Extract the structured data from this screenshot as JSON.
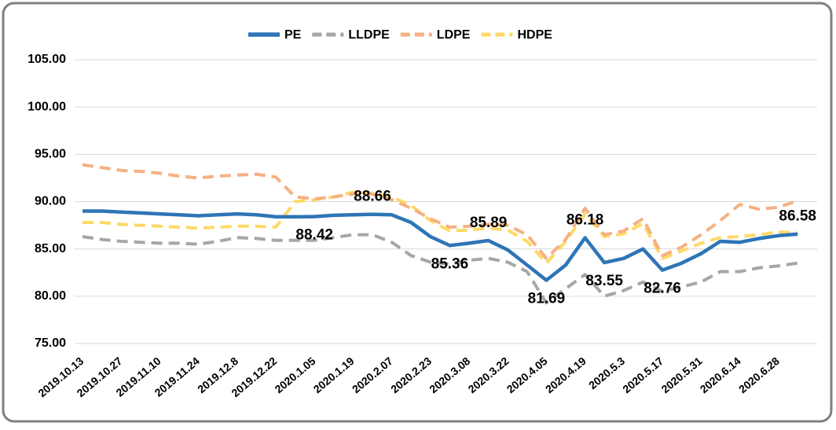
{
  "chart_data": {
    "type": "line",
    "categories": [
      "2019.10.13",
      null,
      "2019.10.27",
      null,
      "2019.11.10",
      null,
      "2019.11.24",
      null,
      "2019.12.8",
      null,
      "2019.12.22",
      null,
      "2020.1.05",
      null,
      "2020.1.19",
      null,
      "2020.2.07",
      null,
      "2020.2.23",
      null,
      "2020.3.08",
      null,
      "2020.3.22",
      null,
      "2020.4.05",
      null,
      "2020.4.19",
      null,
      "2020.5.3",
      null,
      "2020.5.17",
      null,
      "2020.5.31",
      null,
      "2020.6.14",
      null,
      "2020.6.28",
      null
    ],
    "series": [
      {
        "name": "PE",
        "color": "#2e75b6",
        "values": [
          89.0,
          89.0,
          88.9,
          88.8,
          88.7,
          88.6,
          88.5,
          88.6,
          88.7,
          88.6,
          88.4,
          88.4,
          88.42,
          88.55,
          88.6,
          88.66,
          88.6,
          87.8,
          86.3,
          85.36,
          85.6,
          85.89,
          84.9,
          83.3,
          81.69,
          83.3,
          86.18,
          83.55,
          84.0,
          85.0,
          82.76,
          83.5,
          84.5,
          85.8,
          85.7,
          86.1,
          86.4,
          86.58
        ],
        "value_labels": [
          null,
          null,
          null,
          null,
          null,
          null,
          null,
          null,
          null,
          null,
          null,
          null,
          "88.42",
          null,
          null,
          "88.66",
          null,
          null,
          null,
          "85.36",
          null,
          "85.89",
          null,
          null,
          "81.69",
          null,
          "86.18",
          "83.55",
          null,
          null,
          "82.76",
          null,
          null,
          null,
          null,
          null,
          null,
          "86.58"
        ]
      },
      {
        "name": "LLDPE",
        "color": "#a6a6a6",
        "values": [
          86.3,
          86.0,
          85.8,
          85.7,
          85.6,
          85.6,
          85.5,
          85.8,
          86.2,
          86.1,
          85.9,
          85.9,
          85.9,
          86.2,
          86.5,
          86.5,
          85.7,
          84.3,
          83.6,
          83.4,
          83.8,
          84.0,
          83.6,
          82.6,
          79.3,
          80.8,
          82.3,
          80.0,
          80.6,
          81.5,
          80.5,
          81.0,
          81.5,
          82.6,
          82.6,
          83.0,
          83.2,
          83.5
        ]
      },
      {
        "name": "LDPE",
        "color": "#f4b183",
        "values": [
          93.9,
          93.6,
          93.3,
          93.2,
          93.0,
          92.7,
          92.5,
          92.7,
          92.8,
          92.9,
          92.6,
          90.5,
          90.3,
          90.5,
          90.8,
          90.8,
          90.2,
          89.3,
          88.2,
          87.3,
          87.4,
          87.6,
          87.5,
          86.5,
          84.0,
          86.0,
          89.3,
          86.5,
          86.9,
          88.2,
          84.3,
          85.2,
          86.5,
          88.0,
          89.7,
          89.2,
          89.4,
          90.1
        ]
      },
      {
        "name": "HDPE",
        "color": "#ffd966",
        "values": [
          87.8,
          87.8,
          87.6,
          87.5,
          87.4,
          87.3,
          87.2,
          87.3,
          87.4,
          87.4,
          87.3,
          90.0,
          90.2,
          90.5,
          91.0,
          90.9,
          90.5,
          89.6,
          88.0,
          86.9,
          87.0,
          87.2,
          87.0,
          85.8,
          83.5,
          85.8,
          88.7,
          86.3,
          86.6,
          87.7,
          84.0,
          84.8,
          85.6,
          86.2,
          86.3,
          86.5,
          86.8,
          86.7
        ]
      }
    ],
    "ylim": [
      75,
      105
    ],
    "yticks": [
      {
        "value": 75,
        "label": "75.00"
      },
      {
        "value": 80,
        "label": "80.00"
      },
      {
        "value": 85,
        "label": "85.00"
      },
      {
        "value": 90,
        "label": "90.00"
      },
      {
        "value": 95,
        "label": "95.00"
      },
      {
        "value": 100,
        "label": "100.00"
      },
      {
        "value": 105,
        "label": "105.00"
      }
    ],
    "grid": true,
    "legend": "top"
  }
}
